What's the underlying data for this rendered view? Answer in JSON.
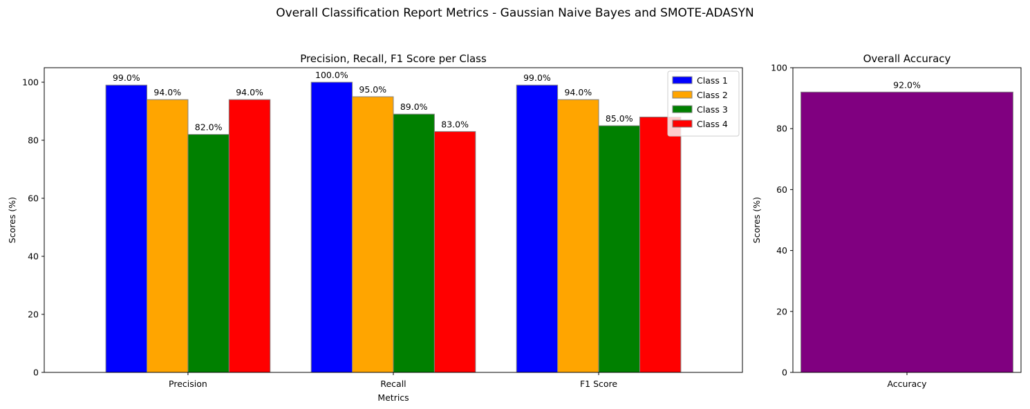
{
  "suptitle": "Overall Classification Report Metrics - Gaussian Naive Bayes and SMOTE-ADASYN",
  "chart_data": [
    {
      "type": "bar",
      "title": "Precision, Recall, F1 Score per Class",
      "xlabel": "Metrics",
      "ylabel": "Scores (%)",
      "categories": [
        "Precision",
        "Recall",
        "F1 Score"
      ],
      "ylim": [
        0,
        105
      ],
      "yticks": [
        0,
        20,
        40,
        60,
        80,
        100
      ],
      "legend_position": "top-right",
      "grid": false,
      "series": [
        {
          "name": "Class 1",
          "color": "#0000ff",
          "values": [
            99,
            100,
            99
          ],
          "labels": [
            "99.0%",
            "100.0%",
            "99.0%"
          ]
        },
        {
          "name": "Class 2",
          "color": "#ffa500",
          "values": [
            94,
            95,
            94
          ],
          "labels": [
            "94.0%",
            "95.0%",
            "94.0%"
          ]
        },
        {
          "name": "Class 3",
          "color": "#008000",
          "values": [
            82,
            89,
            85
          ],
          "labels": [
            "82.0%",
            "89.0%",
            "85.0%"
          ]
        },
        {
          "name": "Class 4",
          "color": "#ff0000",
          "values": [
            94,
            83,
            88
          ],
          "labels": [
            "94.0%",
            "83.0%",
            ""
          ]
        }
      ]
    },
    {
      "type": "bar",
      "title": "Overall Accuracy",
      "xlabel": "",
      "ylabel": "Scores (%)",
      "categories": [
        "Accuracy"
      ],
      "ylim": [
        0,
        100
      ],
      "yticks": [
        0,
        20,
        40,
        60,
        80,
        100
      ],
      "grid": false,
      "series": [
        {
          "color": "#800080",
          "values": [
            92
          ],
          "labels": [
            "92.0%"
          ]
        }
      ]
    }
  ]
}
